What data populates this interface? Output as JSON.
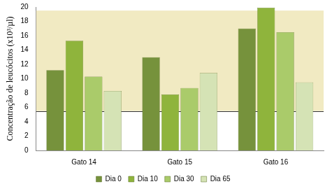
{
  "chart_data": {
    "type": "bar",
    "y_label": "Concentração de leucócitos (x10³/µl)",
    "categories": [
      "Gato 14",
      "Gato 15",
      "Gato 16"
    ],
    "series": [
      {
        "name": "Dia 0",
        "color": "#76923c",
        "values": [
          11.2,
          13.0,
          17.0
        ]
      },
      {
        "name": "Dia 10",
        "color": "#8fb43c",
        "values": [
          15.3,
          7.8,
          19.9
        ]
      },
      {
        "name": "Dia 30",
        "color": "#aacb6a",
        "values": [
          10.3,
          8.7,
          16.5
        ]
      },
      {
        "name": "Dia 65",
        "color": "#d5e3b5",
        "values": [
          8.3,
          10.8,
          9.5
        ]
      }
    ],
    "reference_range": [
      5.5,
      19.5
    ],
    "ylim": [
      0,
      20
    ],
    "yticks": [
      0,
      2,
      4,
      6,
      8,
      10,
      12,
      14,
      16,
      18,
      20
    ],
    "grid": false,
    "legend": "bottom"
  }
}
